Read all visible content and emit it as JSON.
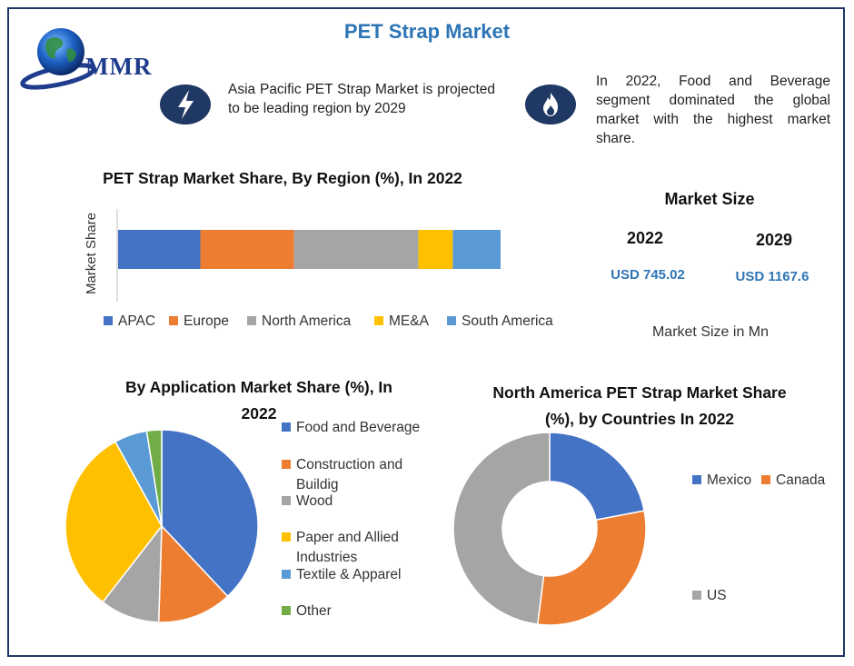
{
  "header": {
    "title": "PET Strap Market",
    "logo_text": "MMR"
  },
  "callouts": {
    "left": "Asia Pacific PET Strap Market is projected to be leading region by 2029",
    "right": "In 2022, Food and Beverage segment dominated the global market with the highest market share."
  },
  "icons": {
    "left": "lightning-icon",
    "right": "flame-icon",
    "logo": "globe-icon"
  },
  "market_size": {
    "title": "Market Size",
    "years": [
      {
        "year": "2022",
        "value": "USD 745.02"
      },
      {
        "year": "2029",
        "value": "USD 1167.6"
      }
    ],
    "unit_note": "Market Size in Mn"
  },
  "chart_data": [
    {
      "type": "bar",
      "orientation": "horizontal",
      "stacked": true,
      "title": "PET Strap Market Share, By Region (%), In 2022",
      "ylabel": "Market Share",
      "legend_position": "bottom",
      "series": [
        {
          "name": "APAC",
          "value": 21.5,
          "color": "#4472c4"
        },
        {
          "name": "Europe",
          "value": 24.5,
          "color": "#ed7d31"
        },
        {
          "name": "North America",
          "value": 32.5,
          "color": "#a5a5a5"
        },
        {
          "name": "ME&A",
          "value": 9,
          "color": "#ffc000"
        },
        {
          "name": "South America",
          "value": 12.5,
          "color": "#5b9bd5"
        }
      ]
    },
    {
      "type": "pie",
      "title": "By Application Market Share (%), In 2022",
      "legend_position": "right",
      "series": [
        {
          "name": "Food and Beverage",
          "value": 38,
          "color": "#4472c4"
        },
        {
          "name": "Construction and Buildig",
          "value": 12.5,
          "color": "#ed7d31"
        },
        {
          "name": "Wood",
          "value": 10,
          "color": "#a5a5a5"
        },
        {
          "name": "Paper and Allied Industries",
          "value": 31.5,
          "color": "#ffc000"
        },
        {
          "name": "Textile & Apparel",
          "value": 5.5,
          "color": "#5b9bd5"
        },
        {
          "name": "Other",
          "value": 2.5,
          "color": "#70ad47"
        }
      ]
    },
    {
      "type": "pie",
      "donut": true,
      "title": "North America PET Strap Market Share (%), by Countries In 2022",
      "legend_position": "right",
      "series": [
        {
          "name": "Mexico",
          "value": 22,
          "color": "#4472c4"
        },
        {
          "name": "Canada",
          "value": 30,
          "color": "#ed7d31"
        },
        {
          "name": "US",
          "value": 48,
          "color": "#a5a5a5"
        }
      ]
    }
  ]
}
